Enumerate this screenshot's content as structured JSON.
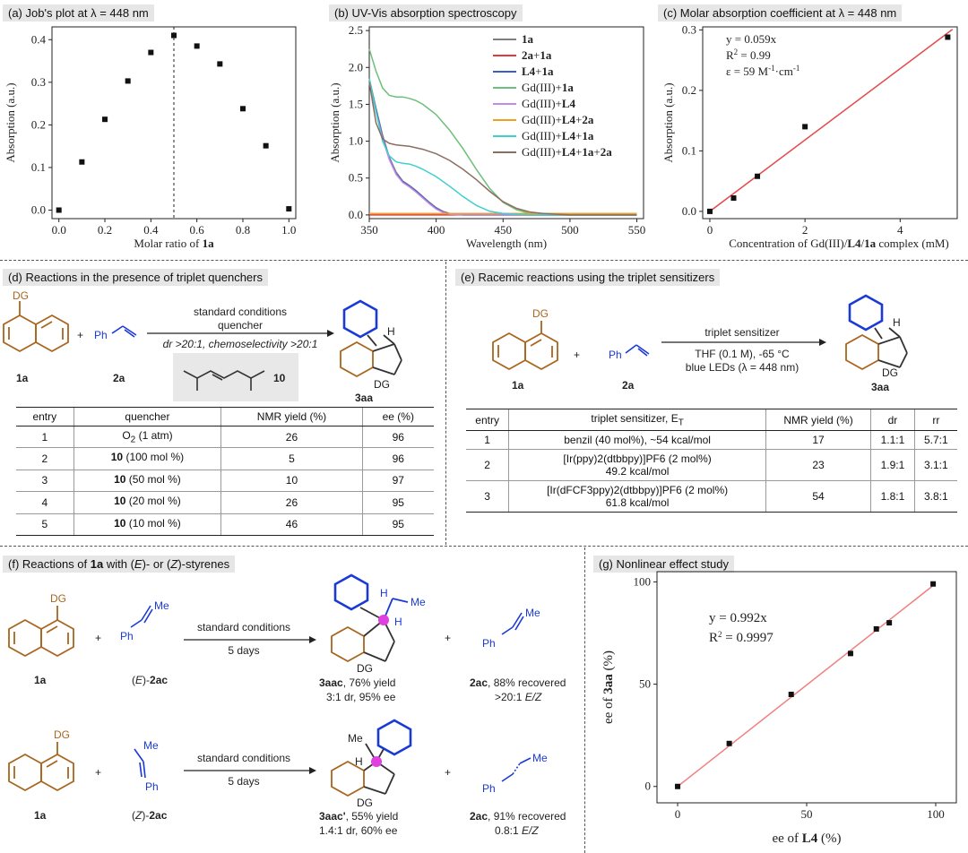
{
  "panels": {
    "a": {
      "label": "(a) Job's plot at λ = 448 nm"
    },
    "b": {
      "label": "(b) UV-Vis absorption spectroscopy"
    },
    "c": {
      "label": "(c) Molar absorption coefficient at λ = 448 nm"
    },
    "d": {
      "label": "(d) Reactions in the presence of triplet quenchers"
    },
    "e": {
      "label": "(e) Racemic reactions using the triplet sensitizers"
    },
    "f": {
      "label_pre": "(f) Reactions of ",
      "label_bold": "1a",
      "label_mid": " with (",
      "label_e": "E",
      "label_mid2": ")- or (",
      "label_z": "Z",
      "label_post": ")-styrenes"
    },
    "g": {
      "label": "(g) Nonlinear effect study"
    }
  },
  "colors": {
    "naphthalene": "#a8661f",
    "styrene": "#1a3ad6",
    "bold_benzene": "#1a3ad6",
    "pink_atom": "#e040e0",
    "fit_c": "#e24a4a",
    "fit_g": "#f08080"
  },
  "chart_data": [
    {
      "type": "scatter",
      "panel": "a",
      "x": [
        0.0,
        0.1,
        0.2,
        0.3,
        0.4,
        0.5,
        0.6,
        0.7,
        0.8,
        0.9,
        1.0
      ],
      "y": [
        0.0,
        0.113,
        0.213,
        0.303,
        0.37,
        0.41,
        0.385,
        0.343,
        0.238,
        0.151,
        0.003
      ],
      "xlabel_pre": "Molar ratio of ",
      "xlabel_bold": "1a",
      "ylabel": "Absorption (a.u.)",
      "xticks": [
        "0.0",
        "0.2",
        "0.4",
        "0.6",
        "0.8",
        "1.0"
      ],
      "yticks": [
        "0.0",
        "0.1",
        "0.2",
        "0.3",
        "0.4"
      ],
      "xlim": [
        -0.03,
        1.03
      ],
      "ylim": [
        -0.02,
        0.43
      ],
      "vline_x": 0.5,
      "marker_color": "#111111"
    },
    {
      "type": "line",
      "panel": "b",
      "xlabel": "Wavelength (nm)",
      "ylabel": "Absorption (a.u.)",
      "xticks": [
        "350",
        "400",
        "450",
        "500",
        "550"
      ],
      "yticks": [
        "0.0",
        "0.5",
        "1.0",
        "1.5",
        "2.0",
        "2.5"
      ],
      "xlim": [
        350,
        555
      ],
      "ylim": [
        -0.05,
        2.55
      ],
      "legend_position": "top-right",
      "series": [
        {
          "name": "1a",
          "name_parts": [
            {
              "t": "1a",
              "b": true
            }
          ],
          "color": "#7f7f7f",
          "x": [
            350,
            355,
            360,
            365,
            370,
            375,
            380,
            385,
            390,
            395,
            400,
            405,
            410,
            420,
            450,
            550
          ],
          "y": [
            1.85,
            1.45,
            1.08,
            0.78,
            0.58,
            0.46,
            0.4,
            0.33,
            0.25,
            0.17,
            0.1,
            0.05,
            0.02,
            0.0,
            0.0,
            0.0
          ]
        },
        {
          "name": "2a+1a",
          "name_parts": [
            {
              "t": "2a",
              "b": true
            },
            {
              "t": "+",
              "b": false
            },
            {
              "t": "1a",
              "b": true
            }
          ],
          "color": "#e03a3a",
          "x": [
            350,
            550
          ],
          "y": [
            0.0,
            0.0
          ]
        },
        {
          "name": "L4+1a",
          "name_parts": [
            {
              "t": "L4",
              "b": true
            },
            {
              "t": "+",
              "b": false
            },
            {
              "t": "1a",
              "b": true
            }
          ],
          "color": "#3a5fc8",
          "x": [
            350,
            355,
            360,
            365,
            370,
            375,
            380,
            385,
            390,
            395,
            400,
            405,
            410,
            420,
            450,
            550
          ],
          "y": [
            1.82,
            1.42,
            1.05,
            0.76,
            0.56,
            0.45,
            0.39,
            0.32,
            0.24,
            0.16,
            0.09,
            0.04,
            0.015,
            0.0,
            0.0,
            0.0
          ]
        },
        {
          "name": "Gd(III)+1a",
          "name_parts": [
            {
              "t": "Gd(III)+",
              "b": false
            },
            {
              "t": "1a",
              "b": true
            }
          ],
          "color": "#6cc07a",
          "x": [
            350,
            355,
            360,
            365,
            370,
            375,
            380,
            385,
            390,
            400,
            410,
            420,
            430,
            440,
            450,
            460,
            470,
            480,
            500,
            550
          ],
          "y": [
            2.25,
            1.95,
            1.72,
            1.62,
            1.6,
            1.6,
            1.58,
            1.55,
            1.5,
            1.36,
            1.15,
            0.9,
            0.62,
            0.36,
            0.17,
            0.07,
            0.02,
            0.0,
            0.0,
            0.0
          ]
        },
        {
          "name": "Gd(III)+L4",
          "name_parts": [
            {
              "t": "Gd(III)+",
              "b": false
            },
            {
              "t": "L4",
              "b": true
            }
          ],
          "color": "#c48ae8",
          "x": [
            350,
            355,
            360,
            365,
            370,
            375,
            380,
            385,
            390,
            395,
            400,
            405,
            410,
            420,
            450,
            550
          ],
          "y": [
            1.8,
            1.4,
            1.03,
            0.75,
            0.55,
            0.44,
            0.38,
            0.31,
            0.23,
            0.15,
            0.08,
            0.035,
            0.01,
            0.0,
            0.0,
            0.0
          ]
        },
        {
          "name": "Gd(III)+L4+2a",
          "name_parts": [
            {
              "t": "Gd(III)+",
              "b": false
            },
            {
              "t": "L4",
              "b": true
            },
            {
              "t": "+",
              "b": false
            },
            {
              "t": "2a",
              "b": true
            }
          ],
          "color": "#f0a020",
          "x": [
            350,
            550
          ],
          "y": [
            0.02,
            0.02
          ]
        },
        {
          "name": "Gd(III)+L4+1a",
          "name_parts": [
            {
              "t": "Gd(III)+",
              "b": false
            },
            {
              "t": "L4",
              "b": true
            },
            {
              "t": "+",
              "b": false
            },
            {
              "t": "1a",
              "b": true
            }
          ],
          "color": "#3ecfd0",
          "x": [
            350,
            355,
            360,
            365,
            370,
            375,
            380,
            385,
            390,
            400,
            410,
            420,
            430,
            440,
            450,
            460,
            470,
            480,
            500,
            550
          ],
          "y": [
            1.85,
            1.4,
            1.0,
            0.8,
            0.72,
            0.7,
            0.69,
            0.66,
            0.62,
            0.52,
            0.39,
            0.25,
            0.13,
            0.05,
            0.02,
            0.01,
            0.0,
            0.0,
            0.0,
            0.0
          ]
        },
        {
          "name": "Gd(III)+L4+1a+2a",
          "name_parts": [
            {
              "t": "Gd(III)+",
              "b": false
            },
            {
              "t": "L4",
              "b": true
            },
            {
              "t": "+",
              "b": false
            },
            {
              "t": "1a",
              "b": true
            },
            {
              "t": "+",
              "b": false
            },
            {
              "t": "2a",
              "b": true
            }
          ],
          "color": "#8c6e60",
          "x": [
            350,
            355,
            360,
            365,
            370,
            380,
            390,
            400,
            410,
            420,
            430,
            440,
            450,
            460,
            470,
            480,
            490,
            500,
            550
          ],
          "y": [
            1.8,
            1.25,
            1.03,
            0.97,
            0.95,
            0.93,
            0.89,
            0.83,
            0.74,
            0.62,
            0.48,
            0.32,
            0.18,
            0.09,
            0.04,
            0.02,
            0.01,
            0.0,
            0.0
          ]
        }
      ]
    },
    {
      "type": "scatter",
      "panel": "c",
      "x": [
        0.0,
        0.5,
        1.0,
        2.0,
        5.0
      ],
      "y": [
        0.0,
        0.022,
        0.058,
        0.14,
        0.288
      ],
      "fit_slope": 0.059,
      "xlabel_parts": [
        {
          "t": "Concentration of Gd(III)/",
          "b": false
        },
        {
          "t": "L4",
          "b": true
        },
        {
          "t": "/",
          "b": false
        },
        {
          "t": "1a",
          "b": true
        },
        {
          "t": " complex (mM)",
          "b": false
        }
      ],
      "ylabel": "Absorption (a.u.)",
      "xticks": [
        "0",
        "2",
        "4"
      ],
      "yticks": [
        "0.0",
        "0.1",
        "0.2",
        "0.3"
      ],
      "xlim": [
        -0.15,
        5.2
      ],
      "ylim": [
        -0.012,
        0.305
      ],
      "annotations": [
        "y = 0.059x",
        "R",
        "2",
        " = 0.99",
        "ε = 59 M",
        "-1",
        "·cm",
        "-1"
      ]
    },
    {
      "type": "scatter",
      "panel": "g",
      "x": [
        0,
        20,
        44,
        67,
        77,
        82,
        99
      ],
      "y": [
        0,
        21,
        45,
        65,
        77,
        80,
        99
      ],
      "fit_slope": 0.992,
      "xlabel_pre": "ee of ",
      "xlabel_bold": "L4",
      "xlabel_post": " (%)",
      "ylabel_pre": "ee of ",
      "ylabel_bold": "3aa",
      "ylabel_post": " (%)",
      "xticks": [
        "0",
        "50",
        "100"
      ],
      "yticks": [
        "0",
        "50",
        "100"
      ],
      "xlim": [
        -8,
        108
      ],
      "ylim": [
        -8,
        105
      ],
      "annotations": [
        "y = 0.992x",
        "R",
        "2",
        " = 0.9997"
      ]
    }
  ],
  "scheme_d": {
    "above_arrow_1": "standard conditions",
    "above_arrow_2": "quencher",
    "below_arrow": "dr >20:1, chemoselectivity >20:1",
    "sub_1a": "1a",
    "sub_2a": "2a",
    "prod": "3aa",
    "quencher_label": "10",
    "dg": "DG",
    "ph": "Ph",
    "h": "H",
    "plus": "+",
    "table": {
      "headers": [
        "entry",
        "quencher",
        "NMR yield (%)",
        "ee (%)"
      ],
      "rows": [
        {
          "entry": "1",
          "q_bold": "",
          "q_main": "O",
          "q_sub": "2",
          "q_rest": " (1 atm)",
          "yield": "26",
          "ee": "96"
        },
        {
          "entry": "2",
          "q_bold": "10",
          "q_main": " (100 mol %)",
          "q_sub": "",
          "q_rest": "",
          "yield": "5",
          "ee": "96"
        },
        {
          "entry": "3",
          "q_bold": "10",
          "q_main": " (50 mol %)",
          "q_sub": "",
          "q_rest": "",
          "yield": "10",
          "ee": "97"
        },
        {
          "entry": "4",
          "q_bold": "10",
          "q_main": " (20 mol %)",
          "q_sub": "",
          "q_rest": "",
          "yield": "26",
          "ee": "95"
        },
        {
          "entry": "5",
          "q_bold": "10",
          "q_main": " (10 mol %)",
          "q_sub": "",
          "q_rest": "",
          "yield": "46",
          "ee": "95"
        }
      ]
    }
  },
  "scheme_e": {
    "above_arrow": "triplet sensitizer",
    "below_arrow_1": "THF (0.1 M), -65 °C",
    "below_arrow_2": "blue LEDs (λ = 448 nm)",
    "sub_1a": "1a",
    "sub_2a": "2a",
    "prod": "3aa",
    "table": {
      "headers": [
        "entry",
        "triplet sensitizer, E",
        "T",
        "NMR yield (%)",
        "dr",
        "rr"
      ],
      "rows": [
        {
          "entry": "1",
          "s1": "benzil (40 mol%), ~54 kcal/mol",
          "s2": "",
          "yield": "17",
          "dr": "1.1:1",
          "rr": "5.7:1"
        },
        {
          "entry": "2",
          "s1": "[Ir(ppy)2(dtbbpy)]PF6 (2 mol%)",
          "s2": "49.2 kcal/mol",
          "yield": "23",
          "dr": "1.9:1",
          "rr": "3.1:1"
        },
        {
          "entry": "3",
          "s1": "[Ir(dFCF3ppy)2(dtbbpy)]PF6 (2 mol%)",
          "s2": "61.8 kcal/mol",
          "yield": "54",
          "dr": "1.8:1",
          "rr": "3.8:1"
        }
      ]
    }
  },
  "scheme_f": {
    "arrow_top": "standard conditions",
    "arrow_bottom": "5 days",
    "me": "Me",
    "row1": {
      "sub1": "1a",
      "sub2_pre": "(",
      "sub2_it": "E",
      "sub2_mid": ")-",
      "sub2_bold": "2ac",
      "prod_bold": "3aac",
      "prod_rest": ", 76% yield",
      "prod_line2": "3:1 dr, 95% ee",
      "rec_bold": "2ac",
      "rec_rest": ", 88% recovered",
      "rec_line2_pre": ">20:1 ",
      "rec_line2_it": "E/Z"
    },
    "row2": {
      "sub1": "1a",
      "sub2_pre": "(",
      "sub2_it": "Z",
      "sub2_mid": ")-",
      "sub2_bold": "2ac",
      "prod_bold": "3aac'",
      "prod_rest": ", 55% yield",
      "prod_line2": "1.4:1 dr, 60% ee",
      "rec_bold": "2ac",
      "rec_rest": ", 91% recovered",
      "rec_line2_pre": "0.8:1 ",
      "rec_line2_it": "E/Z"
    }
  }
}
